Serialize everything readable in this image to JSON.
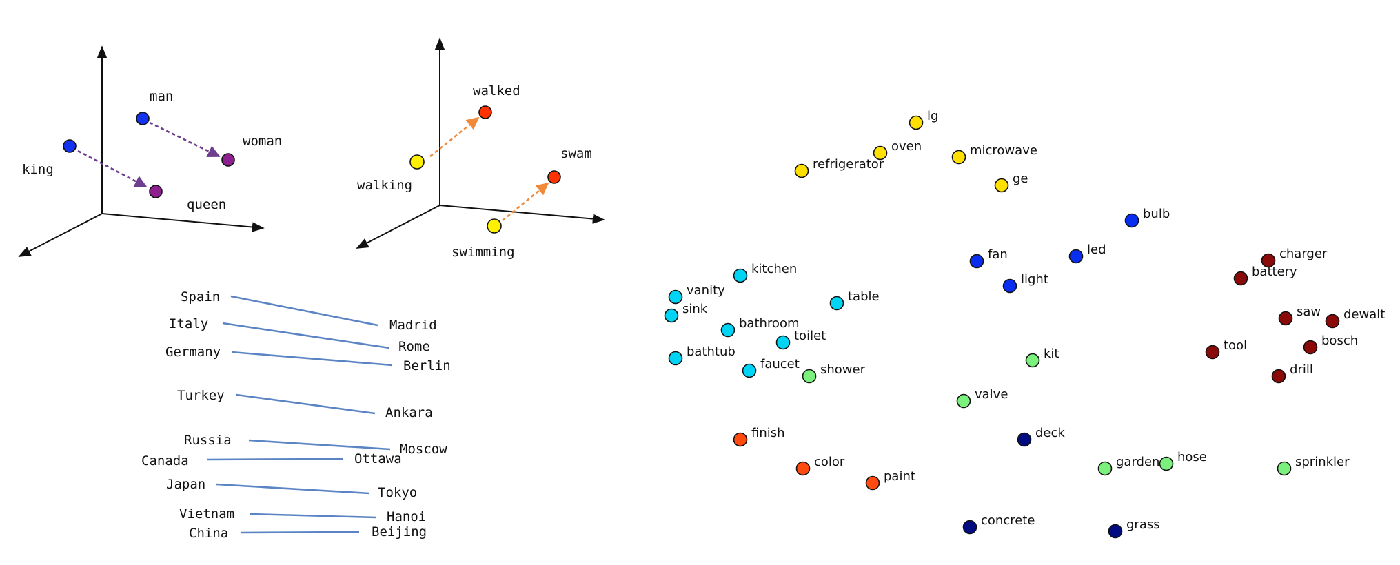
{
  "gender_panel": {
    "words": [
      {
        "text": "man",
        "color": "#1433f0"
      },
      {
        "text": "woman",
        "color": "#8e1f8e"
      },
      {
        "text": "king",
        "color": "#1433f0"
      },
      {
        "text": "queen",
        "color": "#8e1f8e"
      }
    ],
    "arrow_color": "#6e3f8f"
  },
  "tense_panel": {
    "words": [
      {
        "text": "walked",
        "color": "#ff3300"
      },
      {
        "text": "walking",
        "color": "#fff000"
      },
      {
        "text": "swam",
        "color": "#ff3300"
      },
      {
        "text": "swimming",
        "color": "#fff000"
      }
    ],
    "arrow_color": "#f08a3a"
  },
  "capitals_panel": {
    "pairs": [
      {
        "country": "Spain",
        "capital": "Madrid"
      },
      {
        "country": "Italy",
        "capital": "Rome"
      },
      {
        "country": "Germany",
        "capital": "Berlin"
      },
      {
        "country": "Turkey",
        "capital": "Ankara"
      },
      {
        "country": "Russia",
        "capital": "Moscow"
      },
      {
        "country": "Canada",
        "capital": "Ottawa"
      },
      {
        "country": "Japan",
        "capital": "Tokyo"
      },
      {
        "country": "Vietnam",
        "capital": "Hanoi"
      },
      {
        "country": "China",
        "capital": "Beijing"
      }
    ],
    "line_color": "#5b84c4"
  },
  "cluster_panel": {
    "colors": {
      "kitchen_appliances": "#ffe000",
      "electrical": "#0a2ef0",
      "tools": "#8a0a0a",
      "bathroom": "#00d4f5",
      "garden": "#7cf07c",
      "paint": "#ff4a10",
      "outdoor_surface": "#000c80"
    },
    "points": [
      {
        "label": "lg",
        "group": "kitchen_appliances"
      },
      {
        "label": "oven",
        "group": "kitchen_appliances"
      },
      {
        "label": "microwave",
        "group": "kitchen_appliances"
      },
      {
        "label": "refrigerator",
        "group": "kitchen_appliances"
      },
      {
        "label": "ge",
        "group": "kitchen_appliances"
      },
      {
        "label": "bulb",
        "group": "electrical"
      },
      {
        "label": "fan",
        "group": "electrical"
      },
      {
        "label": "led",
        "group": "electrical"
      },
      {
        "label": "light",
        "group": "electrical"
      },
      {
        "label": "charger",
        "group": "tools"
      },
      {
        "label": "battery",
        "group": "tools"
      },
      {
        "label": "saw",
        "group": "tools"
      },
      {
        "label": "dewalt",
        "group": "tools"
      },
      {
        "label": "tool",
        "group": "tools"
      },
      {
        "label": "bosch",
        "group": "tools"
      },
      {
        "label": "drill",
        "group": "tools"
      },
      {
        "label": "kitchen",
        "group": "bathroom"
      },
      {
        "label": "vanity",
        "group": "bathroom"
      },
      {
        "label": "sink",
        "group": "bathroom"
      },
      {
        "label": "table",
        "group": "bathroom"
      },
      {
        "label": "bathroom",
        "group": "bathroom"
      },
      {
        "label": "toilet",
        "group": "bathroom"
      },
      {
        "label": "bathtub",
        "group": "bathroom"
      },
      {
        "label": "faucet",
        "group": "bathroom"
      },
      {
        "label": "shower",
        "group": "garden"
      },
      {
        "label": "kit",
        "group": "garden"
      },
      {
        "label": "valve",
        "group": "garden"
      },
      {
        "label": "garden",
        "group": "garden"
      },
      {
        "label": "hose",
        "group": "garden"
      },
      {
        "label": "sprinkler",
        "group": "garden"
      },
      {
        "label": "finish",
        "group": "paint"
      },
      {
        "label": "color",
        "group": "paint"
      },
      {
        "label": "paint",
        "group": "paint"
      },
      {
        "label": "deck",
        "group": "outdoor_surface"
      },
      {
        "label": "concrete",
        "group": "outdoor_surface"
      },
      {
        "label": "grass",
        "group": "outdoor_surface"
      }
    ]
  }
}
